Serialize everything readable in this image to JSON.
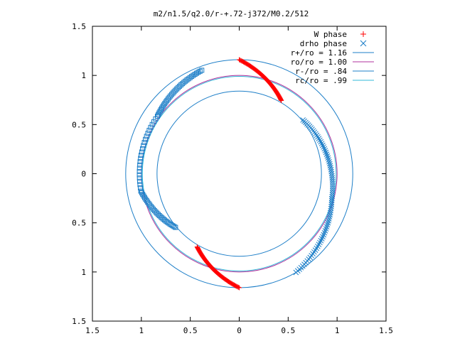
{
  "chart_data": {
    "type": "scatter",
    "title": "m2/n1.5/q2.0/r-+.72-j372/M0.2/512",
    "xlim": [
      -1.5,
      1.5
    ],
    "ylim": [
      -1.5,
      1.5
    ],
    "x_ticks": [
      -1.5,
      -1,
      -0.5,
      0,
      0.5,
      1,
      1.5
    ],
    "x_tick_labels": [
      "1.5",
      "1",
      "0.5",
      "0",
      "0.5",
      "1",
      "1.5"
    ],
    "y_ticks": [
      1.5,
      1,
      0.5,
      0,
      -0.5,
      -1,
      -1.5
    ],
    "y_tick_labels": [
      "1.5",
      "1",
      "0.5",
      "0",
      "0.5",
      "1",
      "1.5"
    ],
    "grid": false,
    "legend_position": "top-right",
    "circles": [
      {
        "name": "r+/ro = 1.16",
        "radius": 1.16,
        "color": "#1e7fc8"
      },
      {
        "name": "ro/ro = 1.00",
        "radius": 1.0,
        "color": "#b0329c"
      },
      {
        "name": "r-/ro = .84",
        "radius": 0.84,
        "color": "#1e7fc8"
      },
      {
        "name": "rc/ro = .99",
        "radius": 0.99,
        "color": "#30b8d8"
      }
    ],
    "series": [
      {
        "name": "W phase",
        "marker": "plus",
        "color": "#ff0000",
        "arcs": [
          {
            "r_start": 1.16,
            "theta_start_deg": 90,
            "r_end": 0.86,
            "theta_end_deg": 60,
            "points": 70
          },
          {
            "r_start": 1.16,
            "theta_start_deg": 270,
            "r_end": 0.86,
            "theta_end_deg": 240,
            "points": 70
          }
        ]
      },
      {
        "name": "drho phase",
        "marker": "cross",
        "color": "#1e7fc8",
        "arcs": [
          {
            "r_start": 0.85,
            "theta_start_deg": 40,
            "r_end": 0.98,
            "theta_end_deg": -15,
            "points": 45
          },
          {
            "r_start": 0.98,
            "theta_start_deg": -15,
            "r_end": 1.16,
            "theta_end_deg": -60,
            "points": 40
          }
        ]
      },
      {
        "name": "",
        "marker": "square",
        "color": "#1e7fc8",
        "arcs": [
          {
            "r_start": 1.12,
            "theta_start_deg": 110,
            "r_end": 1.02,
            "theta_end_deg": 145,
            "points": 35
          },
          {
            "r_start": 1.02,
            "theta_start_deg": 145,
            "r_end": 1.02,
            "theta_end_deg": 190,
            "points": 25
          },
          {
            "r_start": 1.02,
            "theta_start_deg": 190,
            "r_end": 0.85,
            "theta_end_deg": 220,
            "points": 30
          }
        ]
      }
    ]
  }
}
